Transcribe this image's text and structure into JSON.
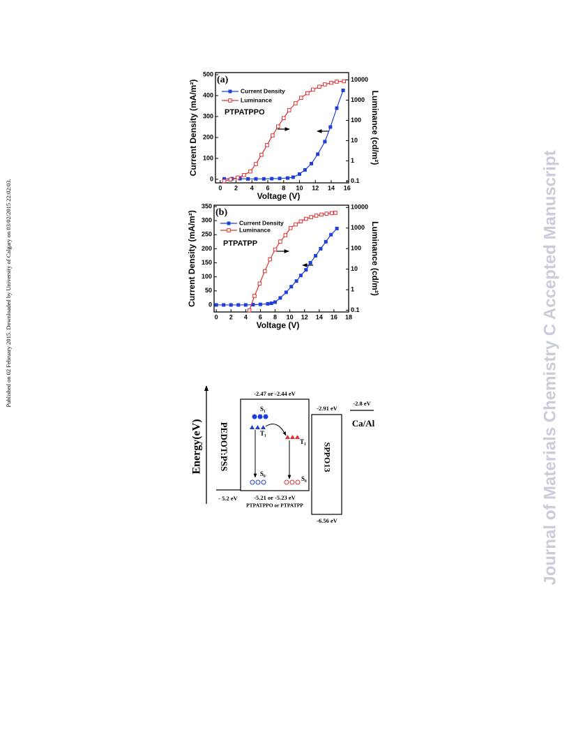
{
  "margin_note": "Published on 02 February 2015. Downloaded by University of Calgary on 03/02/2015 22:02:03.",
  "watermark": "Journal of Materials Chemistry C Accepted Manuscript",
  "chart_data": [
    {
      "type": "line",
      "panel_label": "(a)",
      "sample_label": "PTPATPPO",
      "x_label": "Voltage (V)",
      "y_label": "Current Density (mA/m²)",
      "y2_label": "Luminance (cd/m²)",
      "xlim": [
        -0.6,
        16.2
      ],
      "xticks": [
        0,
        2,
        4,
        6,
        8,
        10,
        12,
        14,
        16
      ],
      "ylim": [
        -17,
        510
      ],
      "yticks": [
        0,
        100,
        200,
        300,
        400,
        500
      ],
      "y2lim": [
        0.082,
        23000
      ],
      "y2ticks": [
        0.1,
        1,
        10,
        100,
        1000,
        10000
      ],
      "y2log": true,
      "series": [
        {
          "name": "Current Density",
          "color": "#1f3fdc",
          "marker": "filled-square",
          "x": [
            0.5,
            1.5,
            2.5,
            3.5,
            4.5,
            5.5,
            6.5,
            7.5,
            8.5,
            9.2,
            10,
            10.7,
            11.5,
            12.3,
            13.2,
            13.9,
            14.7,
            15.5
          ],
          "values": [
            2,
            3,
            3,
            2,
            2,
            2,
            3,
            4,
            6,
            10,
            25,
            45,
            75,
            120,
            180,
            250,
            340,
            425
          ]
        },
        {
          "name": "Luminance",
          "color": "#e03030",
          "marker": "open-square",
          "axis": "y2",
          "x": [
            0.5,
            1.3,
            2.2,
            3,
            3.8,
            4.5,
            5.2,
            5.9,
            6.6,
            7.3,
            8,
            8.7,
            9.5,
            10.2,
            11,
            11.7,
            12.5,
            13.2,
            14,
            14.7,
            15.6
          ],
          "values": [
            0.1,
            0.12,
            0.15,
            0.2,
            0.3,
            0.7,
            2,
            6,
            18,
            50,
            130,
            320,
            700,
            1300,
            2200,
            3300,
            4600,
            6000,
            7200,
            8200,
            8600
          ]
        }
      ]
    },
    {
      "type": "line",
      "panel_label": "(b)",
      "sample_label": "PTPATPP",
      "x_label": "Voltage (V)",
      "y_label": "Current Density (mA/m²)",
      "y2_label": "Luminance (cd/m²)",
      "xlim": [
        -0.3,
        18
      ],
      "xticks": [
        0,
        2,
        4,
        6,
        8,
        10,
        12,
        14,
        16,
        18
      ],
      "ylim": [
        -25,
        355
      ],
      "yticks": [
        0,
        50,
        100,
        150,
        200,
        250,
        300,
        350
      ],
      "y2lim": [
        0.083,
        12900
      ],
      "y2ticks": [
        0.1,
        1,
        10,
        100,
        1000,
        10000
      ],
      "y2log": true,
      "series": [
        {
          "name": "Current Density",
          "color": "#1f3fdc",
          "marker": "filled-square",
          "x": [
            0,
            1,
            2,
            3,
            4,
            5,
            6,
            7,
            7.5,
            8,
            8.7,
            9.5,
            10.2,
            10.9,
            11.5,
            12.2,
            12.8,
            13.5,
            14.2,
            14.9,
            15.6,
            16.4
          ],
          "values": [
            0,
            0,
            0,
            0,
            0,
            1,
            2,
            4,
            6,
            10,
            25,
            45,
            65,
            85,
            105,
            125,
            150,
            175,
            200,
            225,
            250,
            272
          ]
        },
        {
          "name": "Luminance",
          "color": "#e03030",
          "marker": "open-square",
          "axis": "y2",
          "x": [
            4.5,
            5.2,
            5.9,
            6.6,
            7.3,
            8,
            8.7,
            9.4,
            10.1,
            10.8,
            11.5,
            12.2,
            12.9,
            13.6,
            14.3,
            15,
            15.7,
            16.2
          ],
          "values": [
            0.1,
            0.5,
            2,
            8,
            30,
            90,
            220,
            450,
            1000,
            1500,
            2100,
            2800,
            3400,
            4000,
            4500,
            5000,
            5300,
            5500
          ]
        }
      ]
    }
  ],
  "diagram": {
    "energy_axis": "Energy(eV)",
    "pedot_label": "PEDOT:PSS",
    "pedot_level": "- 5.2 eV",
    "emitter_lumo": "-2.47 or -2.44 eV",
    "emitter_homo": "-5.21 or -5.23 eV",
    "emitter_name": "PTPATPPO or PTPATPP",
    "s1": "S₁",
    "t1_host": "T₁",
    "t1_guest": "T₁",
    "s0_host": "S₀",
    "s0_guest": "S₀",
    "sppo_lumo": "-2.91 eV",
    "sppo_homo": "-6.56 eV",
    "sppo_label": "SPPO13",
    "cathode_level": "-2.8 eV",
    "cathode_label": "Ca/Al"
  }
}
